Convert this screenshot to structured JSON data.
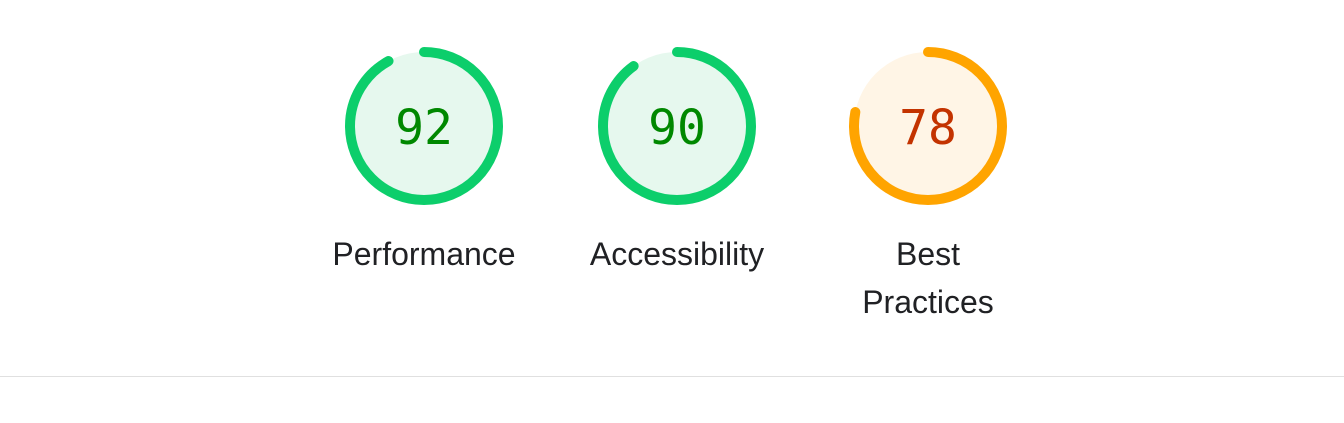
{
  "gauges": [
    {
      "label": "Performance",
      "score": "92",
      "value": 92,
      "status": "pass"
    },
    {
      "label": "Accessibility",
      "score": "90",
      "value": 90,
      "status": "pass"
    },
    {
      "label": "Best Practices",
      "score": "78",
      "value": 78,
      "status": "average"
    }
  ],
  "colors": {
    "pass_arc": "#0cce6b",
    "pass_fill": "#e6f8ee",
    "pass_text": "#008800",
    "average_arc": "#ffa400",
    "average_fill": "#fff5e6",
    "average_text": "#c33300",
    "divider": "#e0e0e0"
  }
}
